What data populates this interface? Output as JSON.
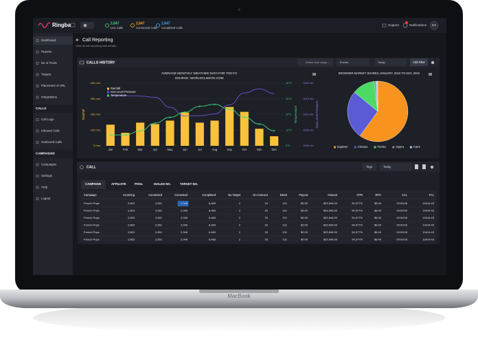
{
  "header": {
    "brand": "Ringba",
    "stats": [
      {
        "value": "2,847",
        "label": "Live Calls",
        "color": "#3ddc84"
      },
      {
        "value": "2,847",
        "label": "Connected Calls",
        "color": "#f7a531"
      },
      {
        "value": "2,847",
        "label": "Completed Calls",
        "color": "#3fa9f5"
      }
    ],
    "support": "Support",
    "notifications": "Notifications",
    "avatar": "CA"
  },
  "sidebar": {
    "groups": [
      {
        "items": [
          "Dashboard",
          "Reports",
          "No of Pools",
          "Targets",
          "Placement of URL",
          "Integrations"
        ]
      },
      {
        "heading": "CALLS",
        "items": [
          "Call Logs",
          "Inbound Calls",
          "Outbound Calls"
        ]
      },
      {
        "heading": "CAMPAIGNS",
        "items": [
          "Campaigns",
          "Settings",
          "Help",
          "Logout"
        ]
      }
    ]
  },
  "page": {
    "title": "Call Reporting",
    "subtitle": "View all call reporting with details."
  },
  "calls_history": {
    "title": "CALLS HISTORY",
    "date_placeholder": "Select date range...",
    "events": "Events",
    "period": "Today",
    "add_filter": "Add Filter"
  },
  "chart_data": [
    {
      "type": "bar",
      "title": "AVERAGE MONTHLY WEATHER DATA FOR TOKYO",
      "subtitle": "SOURCE: WORLDCLIMATE.COM",
      "y_label": "Rainfall",
      "y2_label": "Temperature",
      "y3_label": "Sea-Level Pressure",
      "categories": [
        "Jan",
        "Feb",
        "Mar",
        "Apr",
        "May",
        "Jun",
        "Jul",
        "Aug",
        "Sep",
        "Oct",
        "Nov",
        "Dec"
      ],
      "series": [
        {
          "name": "Rainfall",
          "color": "#f9c23c",
          "values": [
            135,
            83,
            148,
            139,
            161,
            213,
            148,
            161,
            248,
            217,
            109,
            61
          ]
        },
        {
          "name": "Sea-Level Pressure",
          "color": "#6457d6",
          "axis": "y3",
          "values": [
            1016,
            1016,
            1015.9,
            1015.5,
            1012.3,
            1009.5,
            1009.6,
            1010.2,
            1013.1,
            1016.9,
            1018.2,
            1016.7
          ]
        },
        {
          "name": "Temperature",
          "color": "#3ddc84",
          "axis": "y2",
          "values": [
            7,
            6.9,
            9.5,
            14.5,
            18.2,
            21.5,
            25.2,
            26.5,
            23.3,
            18.3,
            13.9,
            9.6
          ]
        }
      ],
      "ylim": [
        0,
        400
      ],
      "yticks": [
        {
          "value": 0,
          "label": "0 mm"
        },
        {
          "value": 100,
          "label": "100 mm"
        },
        {
          "value": 200,
          "label": "200 mm"
        },
        {
          "value": 300,
          "label": "300 mm"
        },
        {
          "value": 400,
          "label": "400 mm"
        }
      ],
      "y2lim": [
        0,
        40
      ],
      "y2ticks": [
        {
          "value": 0,
          "label": "0°C"
        },
        {
          "value": 10,
          "label": "10°C"
        },
        {
          "value": 20,
          "label": "20°C"
        },
        {
          "value": 30,
          "label": "30°C"
        },
        {
          "value": 40,
          "label": "40°C"
        }
      ],
      "y3lim": [
        1000,
        1020
      ],
      "y3ticks": [
        {
          "value": 1000,
          "label": "1000 mb"
        },
        {
          "value": 1005,
          "label": "1005 mb"
        },
        {
          "value": 1010,
          "label": "1010 mb"
        },
        {
          "value": 1015,
          "label": "1015 mb"
        },
        {
          "value": 1020,
          "label": "1020 mb"
        }
      ],
      "grid": true
    },
    {
      "type": "pie",
      "title": "BROWSER MARKET SHARES JANUARY, 2015 TO MAY, 2015",
      "categories": [
        "Explorer",
        "Chrome",
        "Firefox",
        "Opera",
        "Caire"
      ],
      "values": [
        60,
        26,
        12,
        1,
        1
      ],
      "colors": [
        "#f7931e",
        "#5b5bd6",
        "#4cd964",
        "#7f8c8d",
        "#9bd0f5"
      ]
    }
  ],
  "call_panel": {
    "title": "CALL",
    "tags": "Tags",
    "period": "Today",
    "tabs": [
      "CAMPAIGN",
      "AFFILIATE",
      "POOL",
      "DIALED NO.",
      "TARGET NO."
    ],
    "table": {
      "columns": [
        "Campaign",
        "Incoming",
        "Connected",
        "Converted",
        "Completed",
        "No Target",
        "No Connect",
        "Block",
        "Payout",
        "Amount",
        "CPN",
        "RPC",
        "ACL",
        "TCL"
      ],
      "rows": [
        [
          "French Pops",
          "2,803",
          "2,651",
          "2,048",
          "8,483",
          "2",
          "33",
          "131",
          "$0.00",
          "$23,546.00",
          "94,577%",
          "$8.40",
          "00:00:06",
          "13414:43"
        ],
        [
          "French Pops",
          "2,803",
          "2,651",
          "2,048",
          "8,483",
          "2",
          "33",
          "131",
          "$0.00",
          "$23,546.00",
          "94,577%",
          "$8.40",
          "00:00:06",
          "13414:43"
        ],
        [
          "French Pops",
          "2,803",
          "2,651",
          "2,048",
          "8,483",
          "2",
          "33",
          "131",
          "$0.00",
          "$23,546.00",
          "94,577%",
          "$8.40",
          "00:00:06",
          "13414:43"
        ],
        [
          "French Pops",
          "2,803",
          "2,651",
          "2,048",
          "8,483",
          "2",
          "33",
          "131",
          "$0.00",
          "$23,546.00",
          "94,577%",
          "$8.40",
          "00:00:06",
          "13414:43"
        ],
        [
          "French Pops",
          "2,803",
          "2,651",
          "2,048",
          "8,483",
          "2",
          "33",
          "131",
          "$0.00",
          "$23,546.00",
          "94,577%",
          "$8.40",
          "00:00:06",
          "13414:43"
        ],
        [
          "French Pops",
          "2,803",
          "2,651",
          "2,048",
          "8,483",
          "2",
          "33",
          "131",
          "$0.00",
          "$23,546.00",
          "94,577%",
          "$8.40",
          "00:00:06",
          "13414:43"
        ]
      ]
    }
  },
  "device": {
    "label": "MacBook"
  }
}
